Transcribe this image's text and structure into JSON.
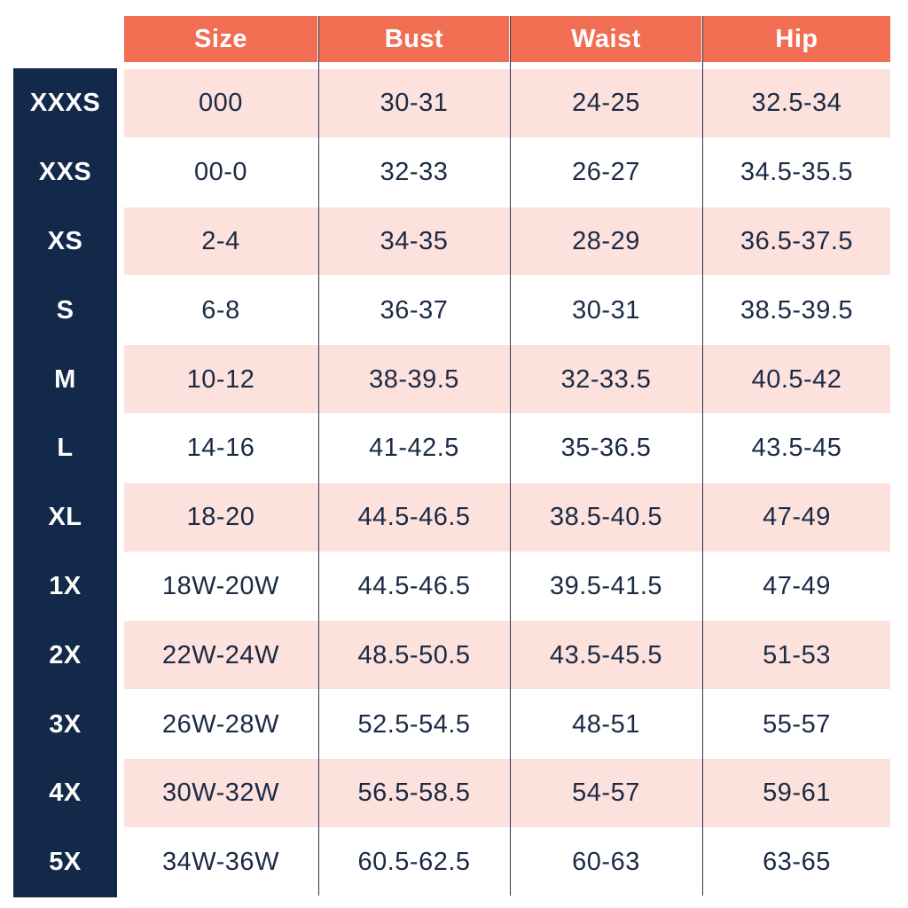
{
  "table": {
    "header": [
      "Size",
      "Bust",
      "Waist",
      "Hip"
    ],
    "rows": [
      {
        "label": "XXXS",
        "cells": [
          "000",
          "30-31",
          "24-25",
          "32.5-34"
        ]
      },
      {
        "label": "XXS",
        "cells": [
          "00-0",
          "32-33",
          "26-27",
          "34.5-35.5"
        ]
      },
      {
        "label": "XS",
        "cells": [
          "2-4",
          "34-35",
          "28-29",
          "36.5-37.5"
        ]
      },
      {
        "label": "S",
        "cells": [
          "6-8",
          "36-37",
          "30-31",
          "38.5-39.5"
        ]
      },
      {
        "label": "M",
        "cells": [
          "10-12",
          "38-39.5",
          "32-33.5",
          "40.5-42"
        ]
      },
      {
        "label": "L",
        "cells": [
          "14-16",
          "41-42.5",
          "35-36.5",
          "43.5-45"
        ]
      },
      {
        "label": "XL",
        "cells": [
          "18-20",
          "44.5-46.5",
          "38.5-40.5",
          "47-49"
        ]
      },
      {
        "label": "1X",
        "cells": [
          "18W-20W",
          "44.5-46.5",
          "39.5-41.5",
          "47-49"
        ]
      },
      {
        "label": "2X",
        "cells": [
          "22W-24W",
          "48.5-50.5",
          "43.5-45.5",
          "51-53"
        ]
      },
      {
        "label": "3X",
        "cells": [
          "26W-28W",
          "52.5-54.5",
          "48-51",
          "55-57"
        ]
      },
      {
        "label": "4X",
        "cells": [
          "30W-32W",
          "56.5-58.5",
          "54-57",
          "59-61"
        ]
      },
      {
        "label": "5X",
        "cells": [
          "34W-36W",
          "60.5-62.5",
          "60-63",
          "63-65"
        ]
      }
    ]
  }
}
